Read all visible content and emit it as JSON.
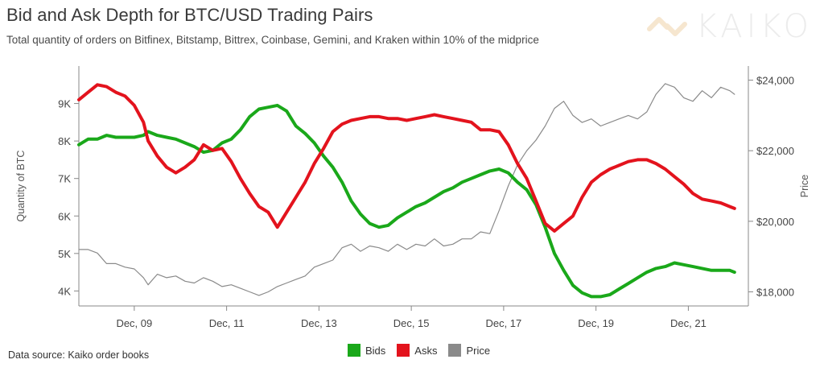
{
  "header": {
    "title": "Bid and Ask Depth for BTC/USD Trading Pairs",
    "subtitle": "Total quantity of orders on Bitfinex, Bitstamp, Bittrex, Coinbase, Gemini, and Kraken within 10% of the midprice"
  },
  "logo": {
    "text": "KAIKO",
    "color": "#f6e6cf"
  },
  "footer": {
    "source": "Data source: Kaiko order books"
  },
  "chart_data": {
    "type": "line",
    "x_axis": {
      "unit": "days",
      "range": [
        "Dec 07 2017 19:00",
        "Dec 21 2017 06:00"
      ],
      "ticks": [
        "Dec, 09",
        "Dec, 11",
        "Dec, 13",
        "Dec, 15",
        "Dec, 17",
        "Dec, 19",
        "Dec, 21"
      ],
      "tick_values": [
        9,
        11,
        13,
        15,
        17,
        19,
        21
      ]
    },
    "y_left": {
      "label": "Quantity of BTC",
      "range": [
        3600,
        10000
      ],
      "ticks": [
        4000,
        5000,
        6000,
        7000,
        8000,
        9000
      ],
      "tick_labels": [
        "4K",
        "5K",
        "6K",
        "7K",
        "8K",
        "9K"
      ]
    },
    "y_right": {
      "label": "Price",
      "range": [
        17600,
        24400
      ],
      "ticks": [
        18000,
        20000,
        22000,
        24000
      ],
      "tick_labels": [
        "$18,000",
        "$20,000",
        "$22,000",
        "$24,000"
      ]
    },
    "grid": false,
    "legend": {
      "position": "bottom-center"
    },
    "series": [
      {
        "name": "Bids",
        "axis": "left",
        "color": "#1aa81a",
        "points": [
          [
            7.8,
            7900
          ],
          [
            8.0,
            8050
          ],
          [
            8.2,
            8050
          ],
          [
            8.4,
            8150
          ],
          [
            8.6,
            8100
          ],
          [
            8.8,
            8100
          ],
          [
            9.0,
            8100
          ],
          [
            9.2,
            8150
          ],
          [
            9.3,
            8250
          ],
          [
            9.5,
            8150
          ],
          [
            9.7,
            8100
          ],
          [
            9.9,
            8050
          ],
          [
            10.1,
            7950
          ],
          [
            10.3,
            7850
          ],
          [
            10.5,
            7700
          ],
          [
            10.7,
            7750
          ],
          [
            10.9,
            7950
          ],
          [
            11.1,
            8050
          ],
          [
            11.3,
            8300
          ],
          [
            11.5,
            8650
          ],
          [
            11.7,
            8850
          ],
          [
            11.9,
            8900
          ],
          [
            12.1,
            8950
          ],
          [
            12.3,
            8800
          ],
          [
            12.5,
            8400
          ],
          [
            12.7,
            8200
          ],
          [
            12.9,
            7950
          ],
          [
            13.1,
            7600
          ],
          [
            13.3,
            7300
          ],
          [
            13.5,
            6900
          ],
          [
            13.7,
            6400
          ],
          [
            13.9,
            6050
          ],
          [
            14.1,
            5800
          ],
          [
            14.3,
            5700
          ],
          [
            14.5,
            5750
          ],
          [
            14.7,
            5950
          ],
          [
            14.9,
            6100
          ],
          [
            15.1,
            6250
          ],
          [
            15.3,
            6350
          ],
          [
            15.5,
            6500
          ],
          [
            15.7,
            6650
          ],
          [
            15.9,
            6750
          ],
          [
            16.1,
            6900
          ],
          [
            16.3,
            7000
          ],
          [
            16.5,
            7100
          ],
          [
            16.7,
            7200
          ],
          [
            16.9,
            7250
          ],
          [
            17.1,
            7150
          ],
          [
            17.3,
            6900
          ],
          [
            17.5,
            6700
          ],
          [
            17.7,
            6300
          ],
          [
            17.9,
            5700
          ],
          [
            18.1,
            5000
          ],
          [
            18.3,
            4550
          ],
          [
            18.5,
            4150
          ],
          [
            18.7,
            3950
          ],
          [
            18.9,
            3850
          ],
          [
            19.1,
            3850
          ],
          [
            19.3,
            3900
          ],
          [
            19.5,
            4050
          ],
          [
            19.7,
            4200
          ],
          [
            19.9,
            4350
          ],
          [
            20.1,
            4500
          ],
          [
            20.3,
            4600
          ],
          [
            20.5,
            4650
          ],
          [
            20.7,
            4750
          ],
          [
            20.9,
            4700
          ],
          [
            21.1,
            4650
          ],
          [
            21.3,
            4600
          ],
          [
            21.5,
            4550
          ],
          [
            21.7,
            4550
          ],
          [
            21.9,
            4550
          ],
          [
            22.0,
            4500
          ]
        ]
      },
      {
        "name": "Asks",
        "axis": "left",
        "color": "#e3131d",
        "points": [
          [
            7.8,
            9100
          ],
          [
            8.0,
            9300
          ],
          [
            8.2,
            9500
          ],
          [
            8.4,
            9450
          ],
          [
            8.6,
            9300
          ],
          [
            8.8,
            9200
          ],
          [
            9.0,
            8950
          ],
          [
            9.2,
            8500
          ],
          [
            9.3,
            8000
          ],
          [
            9.5,
            7600
          ],
          [
            9.7,
            7300
          ],
          [
            9.9,
            7150
          ],
          [
            10.1,
            7300
          ],
          [
            10.3,
            7500
          ],
          [
            10.5,
            7900
          ],
          [
            10.7,
            7750
          ],
          [
            10.9,
            7800
          ],
          [
            11.1,
            7450
          ],
          [
            11.3,
            7000
          ],
          [
            11.5,
            6600
          ],
          [
            11.7,
            6250
          ],
          [
            11.9,
            6100
          ],
          [
            12.1,
            5700
          ],
          [
            12.3,
            6100
          ],
          [
            12.5,
            6500
          ],
          [
            12.7,
            6900
          ],
          [
            12.9,
            7400
          ],
          [
            13.1,
            7800
          ],
          [
            13.3,
            8250
          ],
          [
            13.5,
            8450
          ],
          [
            13.7,
            8550
          ],
          [
            13.9,
            8600
          ],
          [
            14.1,
            8650
          ],
          [
            14.3,
            8650
          ],
          [
            14.5,
            8600
          ],
          [
            14.7,
            8600
          ],
          [
            14.9,
            8550
          ],
          [
            15.1,
            8600
          ],
          [
            15.3,
            8650
          ],
          [
            15.5,
            8700
          ],
          [
            15.7,
            8650
          ],
          [
            15.9,
            8600
          ],
          [
            16.1,
            8550
          ],
          [
            16.3,
            8500
          ],
          [
            16.5,
            8300
          ],
          [
            16.7,
            8300
          ],
          [
            16.9,
            8250
          ],
          [
            17.1,
            7900
          ],
          [
            17.3,
            7400
          ],
          [
            17.5,
            7000
          ],
          [
            17.7,
            6400
          ],
          [
            17.9,
            5800
          ],
          [
            18.1,
            5600
          ],
          [
            18.3,
            5800
          ],
          [
            18.5,
            6000
          ],
          [
            18.7,
            6500
          ],
          [
            18.9,
            6900
          ],
          [
            19.1,
            7100
          ],
          [
            19.3,
            7250
          ],
          [
            19.5,
            7350
          ],
          [
            19.7,
            7450
          ],
          [
            19.9,
            7500
          ],
          [
            20.1,
            7500
          ],
          [
            20.3,
            7400
          ],
          [
            20.5,
            7250
          ],
          [
            20.7,
            7050
          ],
          [
            20.9,
            6850
          ],
          [
            21.1,
            6600
          ],
          [
            21.3,
            6450
          ],
          [
            21.5,
            6400
          ],
          [
            21.7,
            6350
          ],
          [
            21.9,
            6250
          ],
          [
            22.0,
            6200
          ]
        ]
      },
      {
        "name": "Price",
        "axis": "right",
        "color": "#8a8a8a",
        "points": [
          [
            7.8,
            19200
          ],
          [
            8.0,
            19200
          ],
          [
            8.2,
            19100
          ],
          [
            8.4,
            18800
          ],
          [
            8.6,
            18800
          ],
          [
            8.8,
            18700
          ],
          [
            9.0,
            18650
          ],
          [
            9.2,
            18400
          ],
          [
            9.3,
            18200
          ],
          [
            9.5,
            18500
          ],
          [
            9.7,
            18400
          ],
          [
            9.9,
            18450
          ],
          [
            10.1,
            18300
          ],
          [
            10.3,
            18250
          ],
          [
            10.5,
            18400
          ],
          [
            10.7,
            18300
          ],
          [
            10.9,
            18150
          ],
          [
            11.1,
            18200
          ],
          [
            11.3,
            18100
          ],
          [
            11.5,
            18000
          ],
          [
            11.7,
            17900
          ],
          [
            11.9,
            18000
          ],
          [
            12.1,
            18150
          ],
          [
            12.3,
            18250
          ],
          [
            12.5,
            18350
          ],
          [
            12.7,
            18450
          ],
          [
            12.9,
            18700
          ],
          [
            13.1,
            18800
          ],
          [
            13.3,
            18900
          ],
          [
            13.5,
            19250
          ],
          [
            13.7,
            19350
          ],
          [
            13.9,
            19150
          ],
          [
            14.1,
            19300
          ],
          [
            14.3,
            19250
          ],
          [
            14.5,
            19150
          ],
          [
            14.7,
            19350
          ],
          [
            14.9,
            19200
          ],
          [
            15.1,
            19350
          ],
          [
            15.3,
            19300
          ],
          [
            15.5,
            19500
          ],
          [
            15.7,
            19300
          ],
          [
            15.9,
            19350
          ],
          [
            16.1,
            19500
          ],
          [
            16.3,
            19500
          ],
          [
            16.5,
            19700
          ],
          [
            16.7,
            19650
          ],
          [
            16.9,
            20300
          ],
          [
            17.1,
            21000
          ],
          [
            17.3,
            21600
          ],
          [
            17.5,
            22000
          ],
          [
            17.7,
            22300
          ],
          [
            17.9,
            22700
          ],
          [
            18.1,
            23200
          ],
          [
            18.3,
            23400
          ],
          [
            18.5,
            23000
          ],
          [
            18.7,
            22800
          ],
          [
            18.9,
            22900
          ],
          [
            19.1,
            22700
          ],
          [
            19.3,
            22800
          ],
          [
            19.5,
            22900
          ],
          [
            19.7,
            23000
          ],
          [
            19.9,
            22900
          ],
          [
            20.1,
            23100
          ],
          [
            20.3,
            23600
          ],
          [
            20.5,
            23900
          ],
          [
            20.7,
            23800
          ],
          [
            20.9,
            23500
          ],
          [
            21.1,
            23400
          ],
          [
            21.3,
            23700
          ],
          [
            21.5,
            23500
          ],
          [
            21.7,
            23800
          ],
          [
            21.9,
            23700
          ],
          [
            22.0,
            23600
          ]
        ]
      }
    ]
  }
}
